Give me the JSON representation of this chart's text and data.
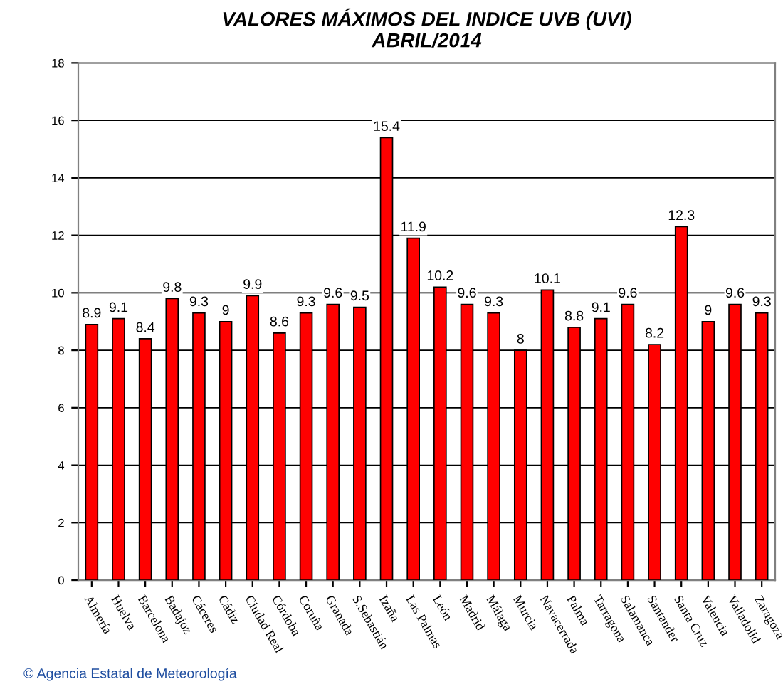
{
  "chart_data": {
    "type": "bar",
    "title": "VALORES MÁXIMOS DEL INDICE UVB (UVI)\nABRIL/2014",
    "categories": [
      "Almería",
      "Huelva",
      "Barcelona",
      "Badajoz",
      "Cáceres",
      "Cádiz",
      "Ciudad Real",
      "Córdoba",
      "Coruña",
      "Granada",
      "S.Sebastián",
      "Izaña",
      "Las Palmas",
      "León",
      "Madrid",
      "Málaga",
      "Murcia",
      "Navacerrada",
      "Palma",
      "Tarragona",
      "Salamanca",
      "Santander",
      "Santa Cruz",
      "Valencia",
      "Valladolid",
      "Zaragoza"
    ],
    "values": [
      8.9,
      9.1,
      8.4,
      9.8,
      9.3,
      9,
      9.9,
      8.6,
      9.3,
      9.6,
      9.5,
      15.4,
      11.9,
      10.2,
      9.6,
      9.3,
      8,
      10.1,
      8.8,
      9.1,
      9.6,
      8.2,
      12.3,
      9,
      9.6,
      9.3
    ],
    "color": "#ff0000",
    "data_labels": true,
    "ylim": [
      0,
      18
    ],
    "yticks": [
      0,
      2,
      4,
      6,
      8,
      10,
      12,
      14,
      16,
      18
    ],
    "grid": "y",
    "annotations": [
      "© Agencia Estatal de Meteorología"
    ]
  }
}
